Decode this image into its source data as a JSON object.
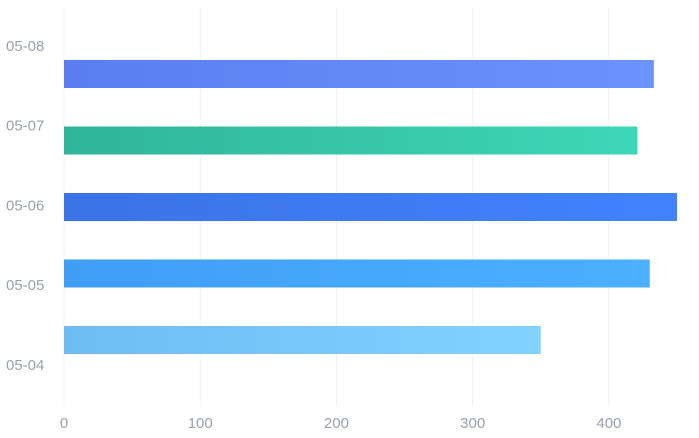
{
  "chart_data": {
    "type": "hbar",
    "categories": [
      "05-04",
      "05-05",
      "05-06",
      "05-07",
      "05-08"
    ],
    "values": [
      350,
      430,
      450,
      421,
      433
    ],
    "colors": [
      [
        "#6fbcf5",
        "#82d2ff"
      ],
      [
        "#3f9ef5",
        "#4cb0ff"
      ],
      [
        "#3a73e6",
        "#4282ff"
      ],
      [
        "#30b598",
        "#3ed7b7"
      ],
      [
        "#5a7ef0",
        "#6b92ff"
      ]
    ],
    "xlim": [
      0,
      450
    ],
    "xticks": [
      0,
      100,
      200,
      300,
      400
    ],
    "grid": true
  }
}
